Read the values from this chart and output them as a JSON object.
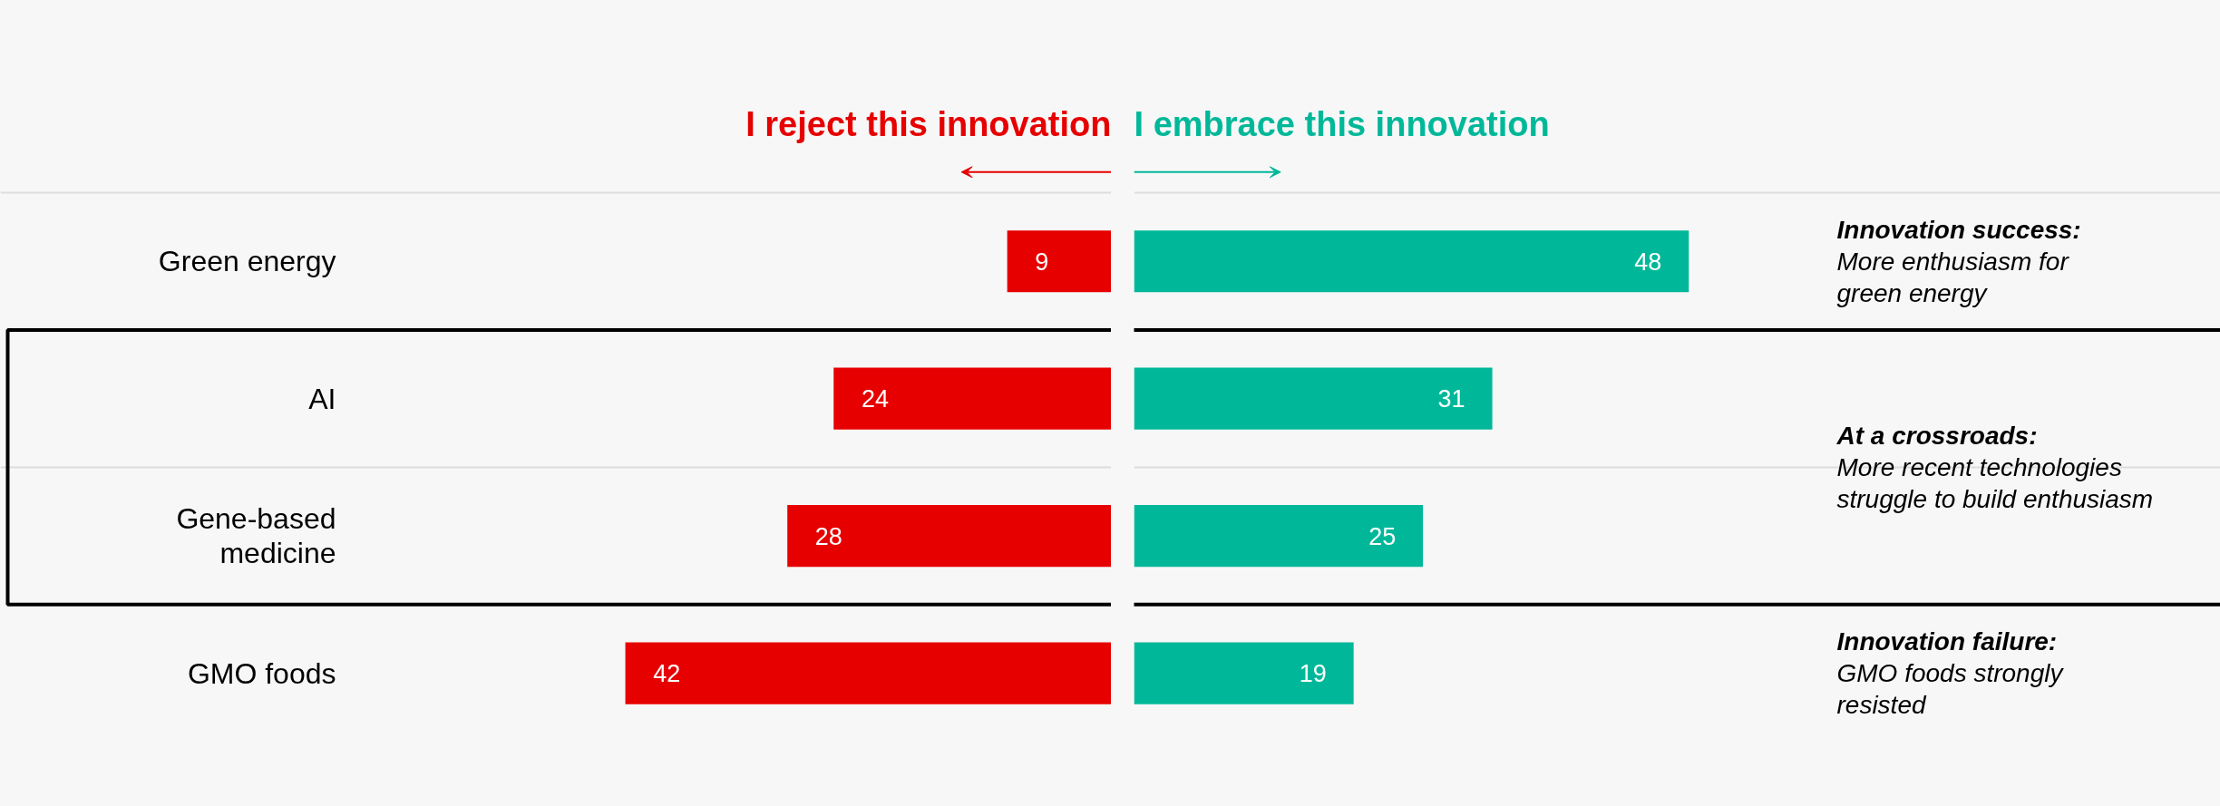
{
  "chart_data": [
    {
      "type": "bar",
      "orientation": "horizontal",
      "categories": [
        "Green energy",
        "AI",
        "Gene-based\nmedicine",
        "GMO foods"
      ],
      "series": [
        {
          "name": "I reject this innovation",
          "color": "#e60000",
          "values": [
            9,
            24,
            28,
            42
          ]
        }
      ],
      "xlim": [
        96,
        0
      ],
      "data_labels": true,
      "grid": false,
      "legend": false
    },
    {
      "type": "bar",
      "orientation": "horizontal",
      "categories": [
        null,
        null,
        null,
        null
      ],
      "series": [
        {
          "name": "I embrace this innovation",
          "color": "#00b899",
          "values": [
            48,
            31,
            25,
            19
          ]
        }
      ],
      "xlim": [
        0,
        94
      ],
      "data_labels": true,
      "grid": false,
      "legend": false,
      "annotations": [
        "Innovation success:\nMore enthusiasm for\ngreen energy",
        "At a crossroads:\nMore recent technologies\nstruggle to build enthusiasm",
        "Innovation failure:\nGMO foods strongly\nresisted"
      ]
    }
  ]
}
